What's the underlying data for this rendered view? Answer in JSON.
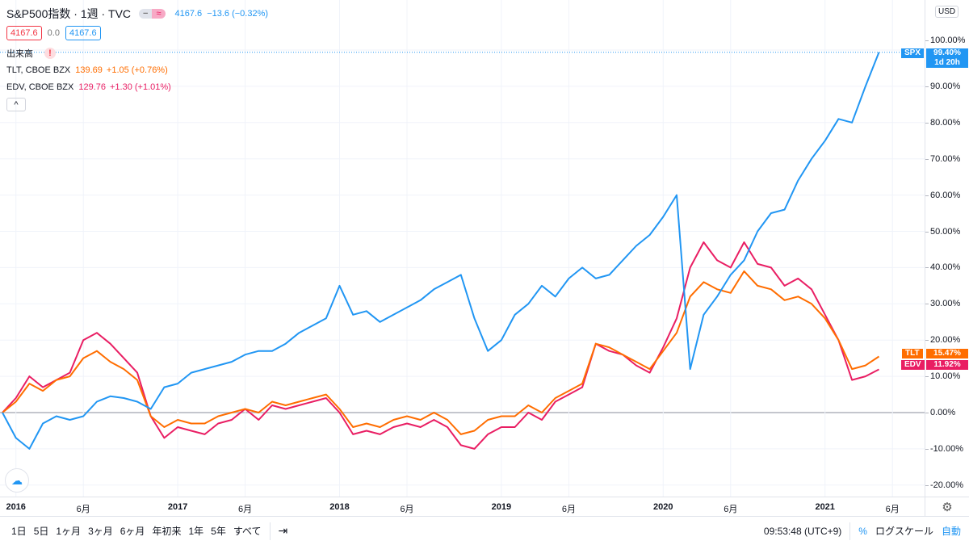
{
  "header": {
    "symbol_title": "S&P500指数 · 1週 · TVC",
    "mode_icons": [
      "minus-icon",
      "approx-icon"
    ],
    "last_price": "4167.6",
    "change": "−13.6 (−0.32%)",
    "bid": "4167.6",
    "spread": "0.0",
    "ask": "4167.6",
    "volume_label": "出来高",
    "volume_warning": "!",
    "tlt": {
      "name": "TLT, CBOE BZX",
      "price": "139.69",
      "change": "+1.05 (+0.76%)"
    },
    "edv": {
      "name": "EDV, CBOE BZX",
      "price": "129.76",
      "change": "+1.30 (+1.01%)"
    },
    "collapse": "^"
  },
  "currency": "USD",
  "price_labels": {
    "spx": {
      "name": "SPX",
      "value": "99.40%",
      "countdown": "1d 20h"
    },
    "tlt": {
      "name": "TLT",
      "value": "15.47%"
    },
    "edv": {
      "name": "EDV",
      "value": "11.92%"
    }
  },
  "toolbar": {
    "ranges": [
      "1日",
      "5日",
      "1ヶ月",
      "3ヶ月",
      "6ヶ月",
      "年初来",
      "1年",
      "5年",
      "すべて"
    ],
    "time": "09:53:48 (UTC+9)",
    "percent": "%",
    "log": "ログスケール",
    "auto": "自動"
  },
  "colors": {
    "spx": "#2196f3",
    "tlt": "#ff6d00",
    "edv": "#e91e63"
  },
  "chart_data": {
    "type": "line",
    "ylabel": "",
    "xlabel": "",
    "ylim": [
      -24,
      103
    ],
    "yticks": [
      "-20.00%",
      "-10.00%",
      "0.00%",
      "10.00%",
      "20.00%",
      "30.00%",
      "40.00%",
      "50.00%",
      "60.00%",
      "70.00%",
      "80.00%",
      "90.00%",
      "100.00%"
    ],
    "xticks": [
      {
        "date": "2016-01",
        "label": "2016",
        "year": true
      },
      {
        "date": "2016-06",
        "label": "6月"
      },
      {
        "date": "2017-01",
        "label": "2017",
        "year": true
      },
      {
        "date": "2017-06",
        "label": "6月"
      },
      {
        "date": "2018-01",
        "label": "2018",
        "year": true
      },
      {
        "date": "2018-06",
        "label": "6月"
      },
      {
        "date": "2019-01",
        "label": "2019",
        "year": true
      },
      {
        "date": "2019-06",
        "label": "6月"
      },
      {
        "date": "2020-01",
        "label": "2020",
        "year": true
      },
      {
        "date": "2020-06",
        "label": "6月"
      },
      {
        "date": "2021-01",
        "label": "2021",
        "year": true
      },
      {
        "date": "2021-06",
        "label": "6月"
      }
    ],
    "grid": true,
    "x": [
      "2015-12",
      "2016-01",
      "2016-02",
      "2016-03",
      "2016-04",
      "2016-05",
      "2016-06",
      "2016-07",
      "2016-08",
      "2016-09",
      "2016-10",
      "2016-11",
      "2016-12",
      "2017-01",
      "2017-02",
      "2017-03",
      "2017-04",
      "2017-05",
      "2017-06",
      "2017-07",
      "2017-08",
      "2017-09",
      "2017-10",
      "2017-11",
      "2017-12",
      "2018-01",
      "2018-02",
      "2018-03",
      "2018-04",
      "2018-05",
      "2018-06",
      "2018-07",
      "2018-08",
      "2018-09",
      "2018-10",
      "2018-11",
      "2018-12",
      "2019-01",
      "2019-02",
      "2019-03",
      "2019-04",
      "2019-05",
      "2019-06",
      "2019-07",
      "2019-08",
      "2019-09",
      "2019-10",
      "2019-11",
      "2019-12",
      "2020-01",
      "2020-02",
      "2020-03",
      "2020-04",
      "2020-05",
      "2020-06",
      "2020-07",
      "2020-08",
      "2020-09",
      "2020-10",
      "2020-11",
      "2020-12",
      "2021-01",
      "2021-02",
      "2021-03",
      "2021-04",
      "2021-05"
    ],
    "series": [
      {
        "name": "SPX",
        "values": [
          0,
          -7,
          -10,
          -3,
          -1,
          -2,
          -1,
          3,
          4.5,
          4,
          3,
          1,
          7,
          8,
          11,
          12,
          13,
          14,
          16,
          17,
          17,
          19,
          22,
          24,
          26,
          35,
          27,
          28,
          25,
          27,
          29,
          31,
          34,
          36,
          38,
          26,
          17,
          20,
          27,
          30,
          35,
          32,
          37,
          40,
          37,
          38,
          42,
          46,
          49,
          54,
          60,
          12,
          27,
          32,
          38,
          42,
          50,
          55,
          56,
          64,
          70,
          75,
          81,
          80,
          90,
          99.4
        ]
      },
      {
        "name": "TLT",
        "values": [
          0,
          3,
          8,
          6,
          9,
          10,
          15,
          17,
          14,
          12,
          9,
          -1,
          -4,
          -2,
          -3,
          -3,
          -1,
          0,
          1,
          0,
          3,
          2,
          3,
          4,
          5,
          1,
          -4,
          -3,
          -4,
          -2,
          -1,
          -2,
          0,
          -2,
          -6,
          -5,
          -2,
          -1,
          -1,
          2,
          0,
          4,
          6,
          8,
          19,
          18,
          16,
          14,
          12,
          17,
          22,
          32,
          36,
          34,
          33,
          39,
          35,
          34,
          31,
          32,
          30,
          26,
          20,
          12,
          13,
          15.47
        ]
      },
      {
        "name": "EDV",
        "values": [
          0,
          4,
          10,
          7,
          9,
          11,
          20,
          22,
          19,
          15,
          11,
          -1,
          -7,
          -4,
          -5,
          -6,
          -3,
          -2,
          1,
          -2,
          2,
          1,
          2,
          3,
          4,
          0,
          -6,
          -5,
          -6,
          -4,
          -3,
          -4,
          -2,
          -4,
          -9,
          -10,
          -6,
          -4,
          -4,
          0,
          -2,
          3,
          5,
          7,
          19,
          17,
          16,
          13,
          11,
          18,
          26,
          40,
          47,
          42,
          40,
          47,
          41,
          40,
          35,
          37,
          34,
          27,
          20,
          9,
          10,
          11.92
        ]
      }
    ]
  }
}
